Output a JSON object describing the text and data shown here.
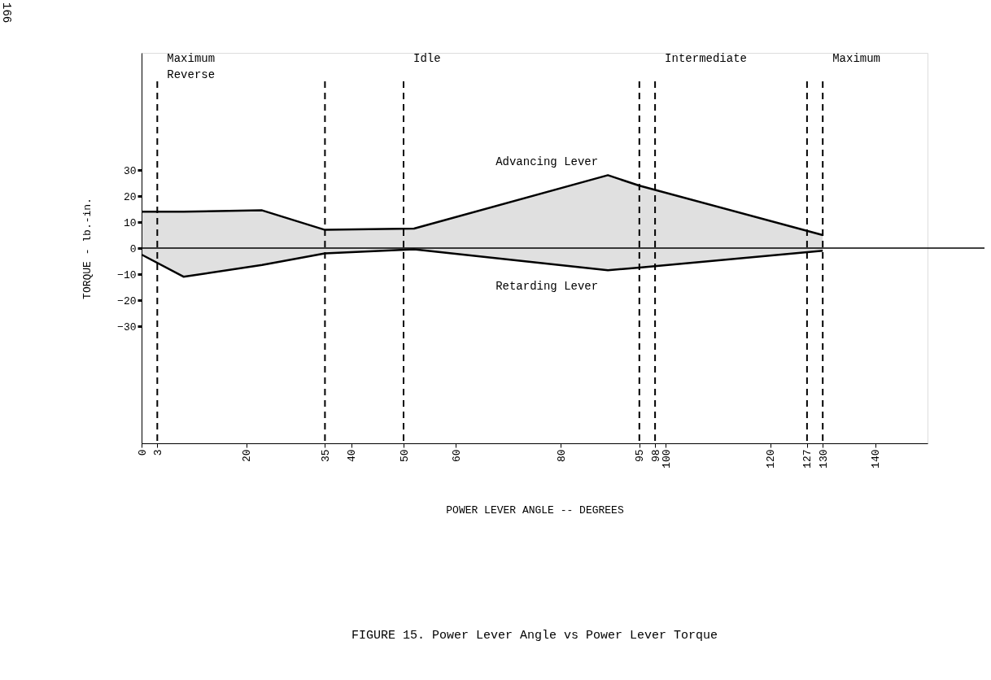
{
  "chart_data": {
    "type": "line",
    "title": "FIGURE 15.  Power Lever Angle vs Power Lever Torque",
    "xlabel": "POWER LEVER ANGLE -- DEGREES",
    "ylabel": "TORQUE - lb.-in.",
    "x": [
      0,
      8,
      23,
      35,
      52,
      89,
      95,
      130
    ],
    "series": [
      {
        "name": "Advancing Lever",
        "color": "#000000",
        "values": [
          14,
          14,
          14.5,
          7,
          7.5,
          28,
          24,
          5
        ],
        "upper": [
          14,
          14,
          14.5,
          7,
          7.5,
          28,
          24,
          5
        ],
        "lower": [
          -2.5,
          -11,
          -6.5,
          -2,
          -0.5,
          -8.5,
          -7.5,
          -1
        ]
      },
      {
        "name": "Retarding Lever",
        "color": "#000000",
        "values": [
          -2.5,
          -11,
          -6.5,
          -2,
          -0.5,
          -8.5,
          -7.5,
          -1
        ]
      }
    ],
    "xlim": [
      0,
      150
    ],
    "ylim": [
      -75,
      75
    ],
    "xticks": [
      0,
      3,
      20,
      35,
      40,
      50,
      60,
      80,
      95,
      98,
      100,
      120,
      127,
      130,
      140
    ],
    "yticks": [
      -30,
      -20,
      -10,
      0,
      10,
      20,
      30
    ],
    "ref_lines": [
      {
        "axis": "y",
        "value": 0,
        "line_style": "solid",
        "color": "#000000"
      },
      {
        "axis": "x",
        "value": 3,
        "label": "Maximum\nReverse",
        "line_style": "dashed",
        "color": "#000000"
      },
      {
        "axis": "x",
        "value": 35,
        "line_style": "dashed",
        "color": "#000000"
      },
      {
        "axis": "x",
        "value": 50,
        "label": "Idle",
        "line_style": "dashed",
        "color": "#000000"
      },
      {
        "axis": "x",
        "value": 95,
        "line_style": "dashed",
        "color": "#000000"
      },
      {
        "axis": "x",
        "value": 98,
        "label": "Intermediate",
        "line_style": "dashed",
        "color": "#000000"
      },
      {
        "axis": "x",
        "value": 127,
        "line_style": "dashed",
        "color": "#000000"
      },
      {
        "axis": "x",
        "value": 130,
        "label": "Maximum",
        "line_style": "dashed",
        "color": "#000000"
      }
    ],
    "annotations": [
      "166"
    ],
    "grid": false,
    "legend": false,
    "marker": "none",
    "line_style": "solid"
  }
}
